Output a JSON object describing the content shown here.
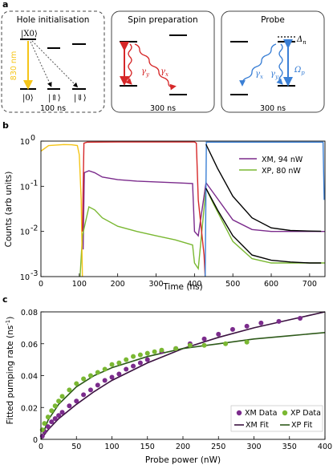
{
  "panel_a": {
    "label": "a",
    "boxes": [
      {
        "title": "Hole initialisation",
        "time": "100 ns",
        "x_label": "|X0⟩",
        "wavelength": "830 nm",
        "kets": [
          "|0⟩",
          "|⇑⟩",
          "|⇓⟩"
        ]
      },
      {
        "title": "Spin preparation",
        "time": "300 ns",
        "gamma_y": "γ",
        "gamma_y_sub": "y",
        "gamma_x": "γ",
        "gamma_x_sub": "x"
      },
      {
        "title": "Probe",
        "time": "300 ns",
        "delta": "Δ",
        "delta_sub": "n",
        "omega": "Ω",
        "omega_sub": "p",
        "gamma_x": "γ",
        "gamma_x_sub": "x",
        "gamma_y": "γ",
        "gamma_y_sub": "y"
      }
    ]
  },
  "colors": {
    "yellow": "#f5c518",
    "red": "#d62728",
    "blue": "#3a7fd5",
    "purple": "#7b2b8c",
    "green": "#7ab832",
    "dark_purple": "#3b1240",
    "dark_green": "#2e5a1a"
  },
  "chart_data": [
    {
      "panel_label": "b",
      "type": "line",
      "xlabel": "Time (ns)",
      "ylabel": "Counts (arb units)",
      "xlim": [
        0,
        740
      ],
      "ylim_log10": [
        -3,
        0
      ],
      "yscale": "log",
      "x_ticks": [
        "0",
        "100",
        "200",
        "300",
        "400",
        "500",
        "600",
        "700"
      ],
      "y_ticks": [
        "10",
        "10",
        "10",
        "10"
      ],
      "y_tick_exps": [
        "-3",
        "-2",
        "-1",
        "0"
      ],
      "legend_position": "right",
      "series": [
        {
          "name": "XM, 94 nW",
          "color": "#7b2b8c",
          "x": [
            110,
            113,
            125,
            140,
            160,
            200,
            250,
            300,
            350,
            395,
            400,
            410,
            430,
            450,
            500,
            550,
            600,
            650,
            700,
            740
          ],
          "y": [
            0.004,
            0.2,
            0.22,
            0.2,
            0.16,
            0.14,
            0.13,
            0.125,
            0.12,
            0.115,
            0.01,
            0.008,
            0.12,
            0.07,
            0.018,
            0.011,
            0.01,
            0.01,
            0.01,
            0.01
          ]
        },
        {
          "name": "XP, 80 nW",
          "color": "#7ab832",
          "x": [
            102,
            108,
            125,
            140,
            160,
            200,
            250,
            300,
            350,
            395,
            400,
            410,
            430,
            450,
            500,
            550,
            600,
            650,
            700,
            740
          ],
          "y": [
            0.001,
            0.008,
            0.035,
            0.03,
            0.02,
            0.013,
            0.01,
            0.008,
            0.0065,
            0.005,
            0.002,
            0.0015,
            0.09,
            0.04,
            0.006,
            0.0025,
            0.002,
            0.002,
            0.002,
            0.002
          ]
        },
        {
          "name": "",
          "color": "#f5c518",
          "x": [
            0,
            20,
            40,
            60,
            80,
            95,
            100,
            105,
            108
          ],
          "y": [
            0.6,
            0.8,
            0.82,
            0.84,
            0.83,
            0.8,
            0.5,
            0.05,
            0.001
          ]
        },
        {
          "name": "",
          "color": "#d62728",
          "x": [
            108,
            112,
            120,
            200,
            300,
            400,
            405,
            410,
            425,
            428
          ],
          "y": [
            0.01,
            0.9,
            0.95,
            0.96,
            0.96,
            0.96,
            0.9,
            0.05,
            0.003,
            0.001
          ]
        },
        {
          "name": "",
          "color": "#3a7fd5",
          "x": [
            428,
            431,
            450,
            500,
            600,
            700,
            735,
            738
          ],
          "y": [
            0.001,
            0.95,
            0.95,
            0.95,
            0.95,
            0.95,
            0.95,
            0.05
          ]
        },
        {
          "name": "",
          "color": "#000000",
          "x": [
            430,
            460,
            500,
            550,
            600,
            650,
            700,
            730
          ],
          "y": [
            0.85,
            0.25,
            0.06,
            0.02,
            0.012,
            0.0105,
            0.0102,
            0.0101
          ]
        },
        {
          "name": "",
          "color": "#000000",
          "x": [
            430,
            460,
            500,
            550,
            600,
            650,
            700,
            730
          ],
          "y": [
            0.09,
            0.03,
            0.008,
            0.003,
            0.0023,
            0.0021,
            0.002,
            0.002
          ]
        }
      ]
    },
    {
      "panel_label": "c",
      "type": "scatter",
      "xlabel": "Probe power (nW)",
      "ylabel": "Fitted pumping rate (ns",
      "ylabel_sup": "-1",
      "ylabel_end": ")",
      "xlim": [
        0,
        400
      ],
      "ylim": [
        0,
        0.08
      ],
      "x_ticks": [
        "0",
        "50",
        "100",
        "150",
        "200",
        "250",
        "300",
        "350",
        "400"
      ],
      "y_ticks": [
        "0",
        "0.02",
        "0.04",
        "0.06",
        "0.08"
      ],
      "legend_position": "bottom-right",
      "series": [
        {
          "name": "XM Data",
          "color": "#7b2b8c",
          "kind": "points",
          "x": [
            2,
            5,
            10,
            15,
            20,
            25,
            30,
            40,
            50,
            60,
            70,
            80,
            90,
            100,
            110,
            120,
            130,
            140,
            150,
            170,
            190,
            210,
            230,
            250,
            270,
            290,
            310,
            335,
            365
          ],
          "y": [
            0.002,
            0.005,
            0.008,
            0.011,
            0.013,
            0.015,
            0.017,
            0.021,
            0.024,
            0.028,
            0.031,
            0.034,
            0.037,
            0.039,
            0.041,
            0.044,
            0.046,
            0.048,
            0.05,
            0.055,
            0.057,
            0.06,
            0.063,
            0.066,
            0.069,
            0.071,
            0.073,
            0.074,
            0.076
          ]
        },
        {
          "name": "XP Data",
          "color": "#7ab832",
          "kind": "points",
          "x": [
            2,
            5,
            10,
            15,
            20,
            25,
            30,
            40,
            50,
            60,
            70,
            80,
            90,
            100,
            110,
            120,
            130,
            140,
            150,
            160,
            170,
            190,
            210,
            230,
            260,
            290
          ],
          "y": [
            0.006,
            0.01,
            0.014,
            0.018,
            0.021,
            0.024,
            0.027,
            0.031,
            0.035,
            0.038,
            0.04,
            0.042,
            0.044,
            0.047,
            0.048,
            0.05,
            0.052,
            0.053,
            0.054,
            0.055,
            0.056,
            0.057,
            0.059,
            0.059,
            0.06,
            0.061
          ]
        },
        {
          "name": "XM Fit",
          "color": "#3b1240",
          "kind": "line",
          "x": [
            0,
            10,
            25,
            50,
            75,
            100,
            150,
            200,
            250,
            300,
            350,
            400
          ],
          "y": [
            0,
            0.006,
            0.013,
            0.022,
            0.03,
            0.037,
            0.048,
            0.057,
            0.064,
            0.07,
            0.075,
            0.08
          ]
        },
        {
          "name": "XP Fit",
          "color": "#2e5a1a",
          "kind": "line",
          "x": [
            0,
            10,
            25,
            50,
            75,
            100,
            150,
            200,
            250,
            300,
            350,
            400
          ],
          "y": [
            0,
            0.012,
            0.022,
            0.033,
            0.04,
            0.045,
            0.052,
            0.057,
            0.06,
            0.063,
            0.065,
            0.067
          ]
        }
      ]
    }
  ]
}
